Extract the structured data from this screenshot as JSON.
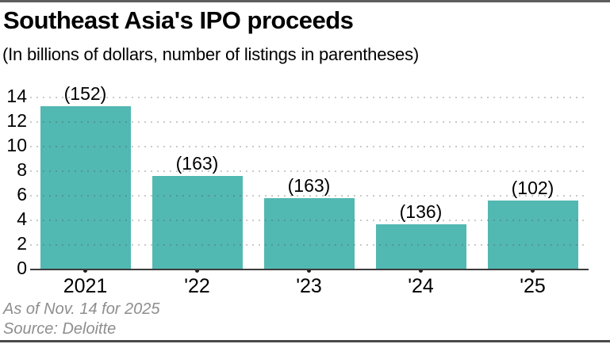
{
  "header": {
    "title": "Southeast Asia's IPO proceeds",
    "subtitle": "(In billions of dollars, number of listings in parentheses)"
  },
  "footer": {
    "note": "As of Nov. 14 for 2025",
    "source": "Source: Deloitte"
  },
  "colors": {
    "bar": "#52b8b2",
    "axis_line": "#3c3c3c",
    "gridline": "#c6c6c6",
    "tick_dot": "#1d1d1d",
    "footer_text": "#8e8e8e",
    "frame_rule": "#5d5d5d",
    "text": "#000000"
  },
  "chart_data": {
    "type": "bar",
    "title": "Southeast Asia's IPO proceeds",
    "subtitle": "(In billions of dollars, number of listings in parentheses)",
    "categories": [
      "2021",
      "'22",
      "'23",
      "'24",
      "'25"
    ],
    "values": [
      13.3,
      7.6,
      5.8,
      3.7,
      5.6
    ],
    "bar_labels": [
      "(152)",
      "(163)",
      "(163)",
      "(136)",
      "(102)"
    ],
    "listings": [
      152,
      163,
      163,
      136,
      102
    ],
    "xlabel": "",
    "ylabel": "",
    "ylim": [
      0,
      14
    ],
    "yticks": [
      0,
      2,
      4,
      6,
      8,
      10,
      12,
      14
    ],
    "grid": "horizontal-dotted",
    "legend": "none",
    "footnote": "As of Nov. 14 for 2025",
    "source": "Source: Deloitte"
  }
}
